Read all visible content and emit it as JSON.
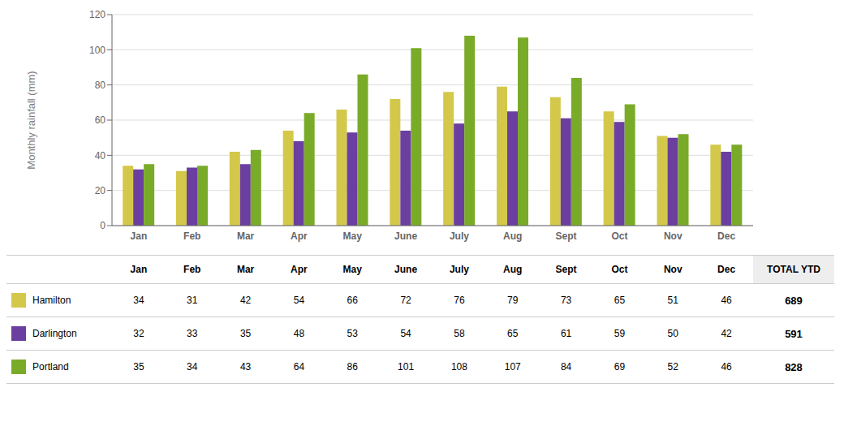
{
  "chart_data": {
    "type": "bar",
    "categories": [
      "Jan",
      "Feb",
      "Mar",
      "Apr",
      "May",
      "June",
      "July",
      "Aug",
      "Sept",
      "Oct",
      "Nov",
      "Dec"
    ],
    "series": [
      {
        "name": "Hamilton",
        "color": "#d4c84a",
        "values": [
          34,
          31,
          42,
          54,
          66,
          72,
          76,
          79,
          73,
          65,
          51,
          46
        ],
        "total": 689
      },
      {
        "name": "Darlington",
        "color": "#6b3fa0",
        "values": [
          32,
          33,
          35,
          48,
          53,
          54,
          58,
          65,
          61,
          59,
          50,
          42
        ],
        "total": 591
      },
      {
        "name": "Portland",
        "color": "#7aab28",
        "values": [
          35,
          34,
          43,
          64,
          86,
          101,
          108,
          107,
          84,
          69,
          52,
          46
        ],
        "total": 828
      }
    ],
    "ylabel": "Monthly rainfall (mm)",
    "ylim": [
      0,
      120
    ],
    "yticks": [
      0,
      20,
      40,
      60,
      80,
      100,
      120
    ],
    "grid": true,
    "total_label": "TOTAL YTD"
  }
}
